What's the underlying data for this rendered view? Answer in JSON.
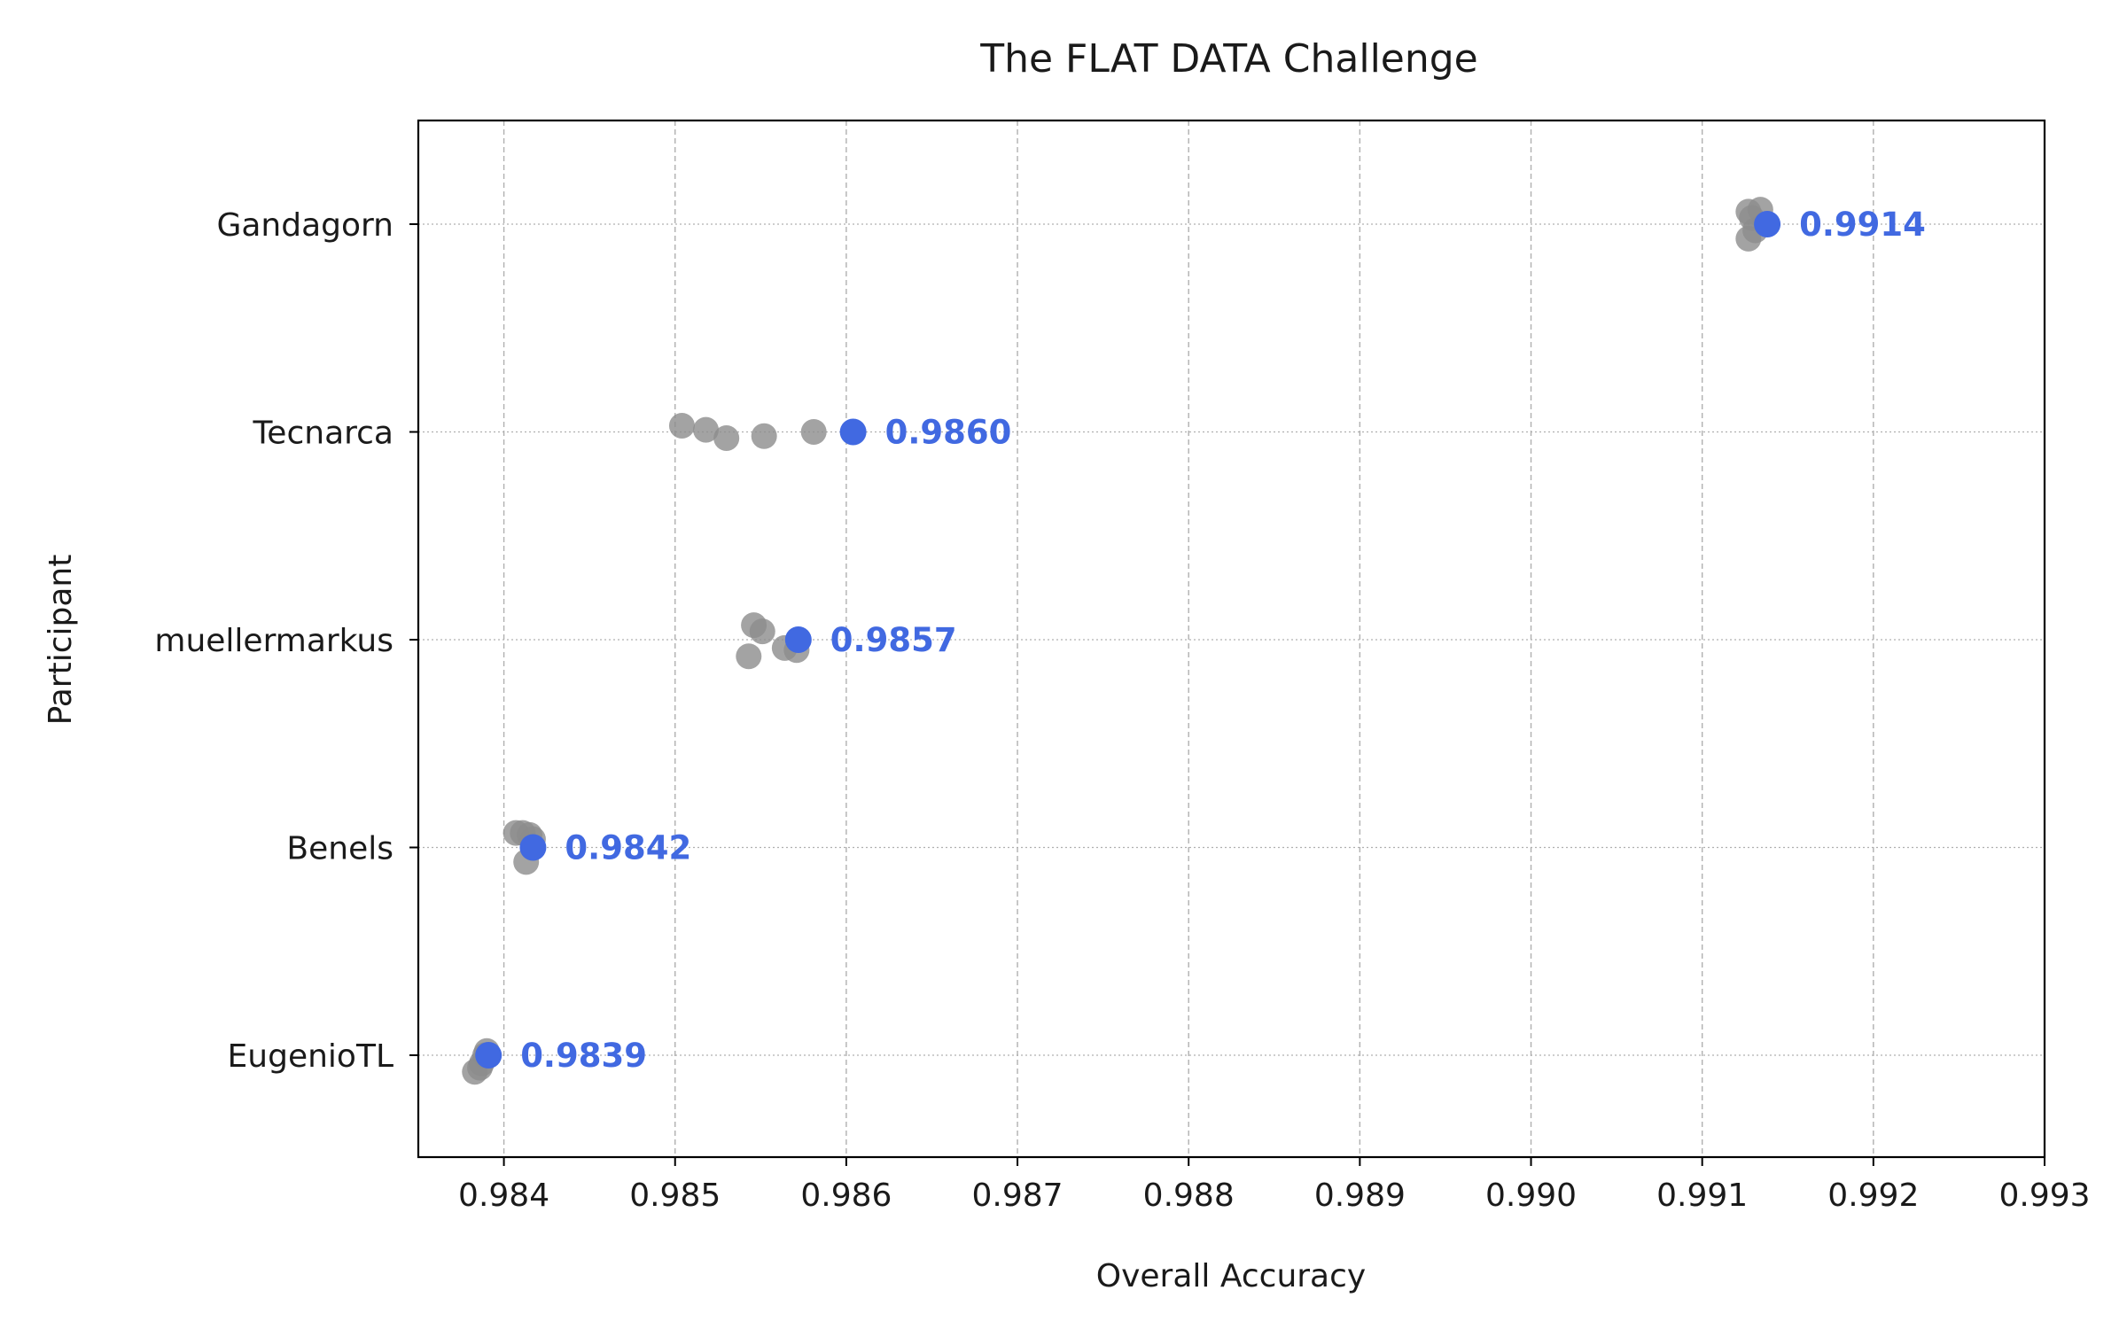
{
  "chart_data": {
    "type": "scatter",
    "title": "The FLAT DATA Challenge",
    "xlabel": "Overall Accuracy",
    "ylabel": "Participant",
    "xlim": [
      0.9835,
      0.993
    ],
    "xticks": [
      "0.984",
      "0.985",
      "0.986",
      "0.987",
      "0.988",
      "0.989",
      "0.990",
      "0.991",
      "0.992",
      "0.993"
    ],
    "xtick_values": [
      0.984,
      0.985,
      0.986,
      0.987,
      0.988,
      0.989,
      0.99,
      0.991,
      0.992,
      0.993
    ],
    "grid": true,
    "colors": {
      "best": "#4169e1",
      "other": "#8c8c8c",
      "grid": "#b0b0b0"
    },
    "participants": [
      {
        "name": "Gandagorn",
        "best": 0.99138,
        "best_label": "0.9914",
        "points": [
          {
            "x": 0.99127,
            "jitter": 0.06
          },
          {
            "x": 0.99134,
            "jitter": 0.07
          },
          {
            "x": 0.99131,
            "jitter": -0.03
          },
          {
            "x": 0.99127,
            "jitter": -0.07
          },
          {
            "x": 0.99129,
            "jitter": 0.03
          }
        ]
      },
      {
        "name": "Tecnarca",
        "best": 0.98604,
        "best_label": "0.9860",
        "points": [
          {
            "x": 0.98504,
            "jitter": 0.03
          },
          {
            "x": 0.98518,
            "jitter": 0.01
          },
          {
            "x": 0.9853,
            "jitter": -0.03
          },
          {
            "x": 0.98552,
            "jitter": -0.02
          },
          {
            "x": 0.98581,
            "jitter": 0.0
          }
        ]
      },
      {
        "name": "muellermarkus",
        "best": 0.98572,
        "best_label": "0.9857",
        "points": [
          {
            "x": 0.98546,
            "jitter": 0.07
          },
          {
            "x": 0.98551,
            "jitter": 0.04
          },
          {
            "x": 0.98543,
            "jitter": -0.08
          },
          {
            "x": 0.98564,
            "jitter": -0.04
          },
          {
            "x": 0.98571,
            "jitter": -0.05
          }
        ]
      },
      {
        "name": "Benels",
        "best": 0.98417,
        "best_label": "0.9842",
        "points": [
          {
            "x": 0.98407,
            "jitter": 0.07
          },
          {
            "x": 0.98411,
            "jitter": 0.07
          },
          {
            "x": 0.98415,
            "jitter": 0.06
          },
          {
            "x": 0.98413,
            "jitter": -0.07
          },
          {
            "x": 0.98417,
            "jitter": 0.04
          }
        ]
      },
      {
        "name": "EugenioTL",
        "best": 0.98391,
        "best_label": "0.9839",
        "points": [
          {
            "x": 0.9839,
            "jitter": 0.02
          },
          {
            "x": 0.98387,
            "jitter": -0.04
          },
          {
            "x": 0.98383,
            "jitter": -0.08
          },
          {
            "x": 0.98386,
            "jitter": -0.06
          },
          {
            "x": 0.98389,
            "jitter": 0.0
          }
        ]
      }
    ]
  }
}
